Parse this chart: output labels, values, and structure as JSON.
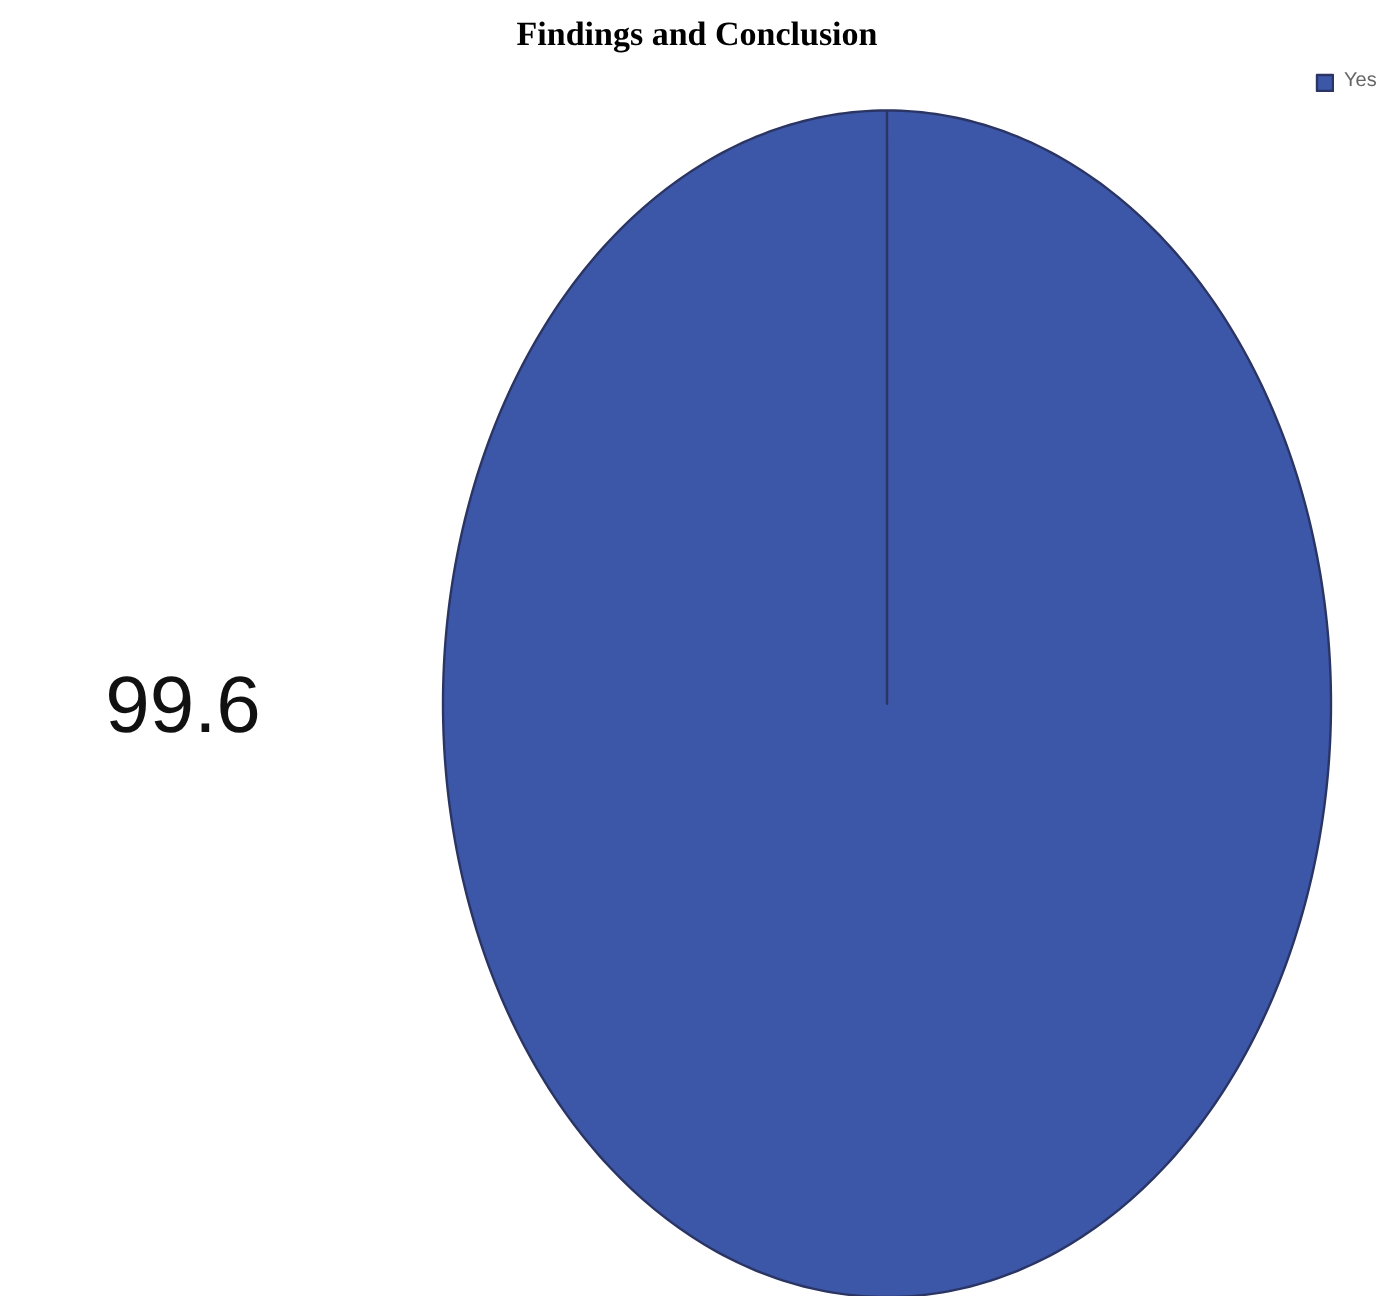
{
  "chart_data": {
    "type": "pie",
    "title": "Findings and Conclusion",
    "categories": [
      "Yes"
    ],
    "values": [
      99.6
    ],
    "colors": [
      "#3c56a8"
    ],
    "data_labels": true,
    "legend": "top right"
  }
}
